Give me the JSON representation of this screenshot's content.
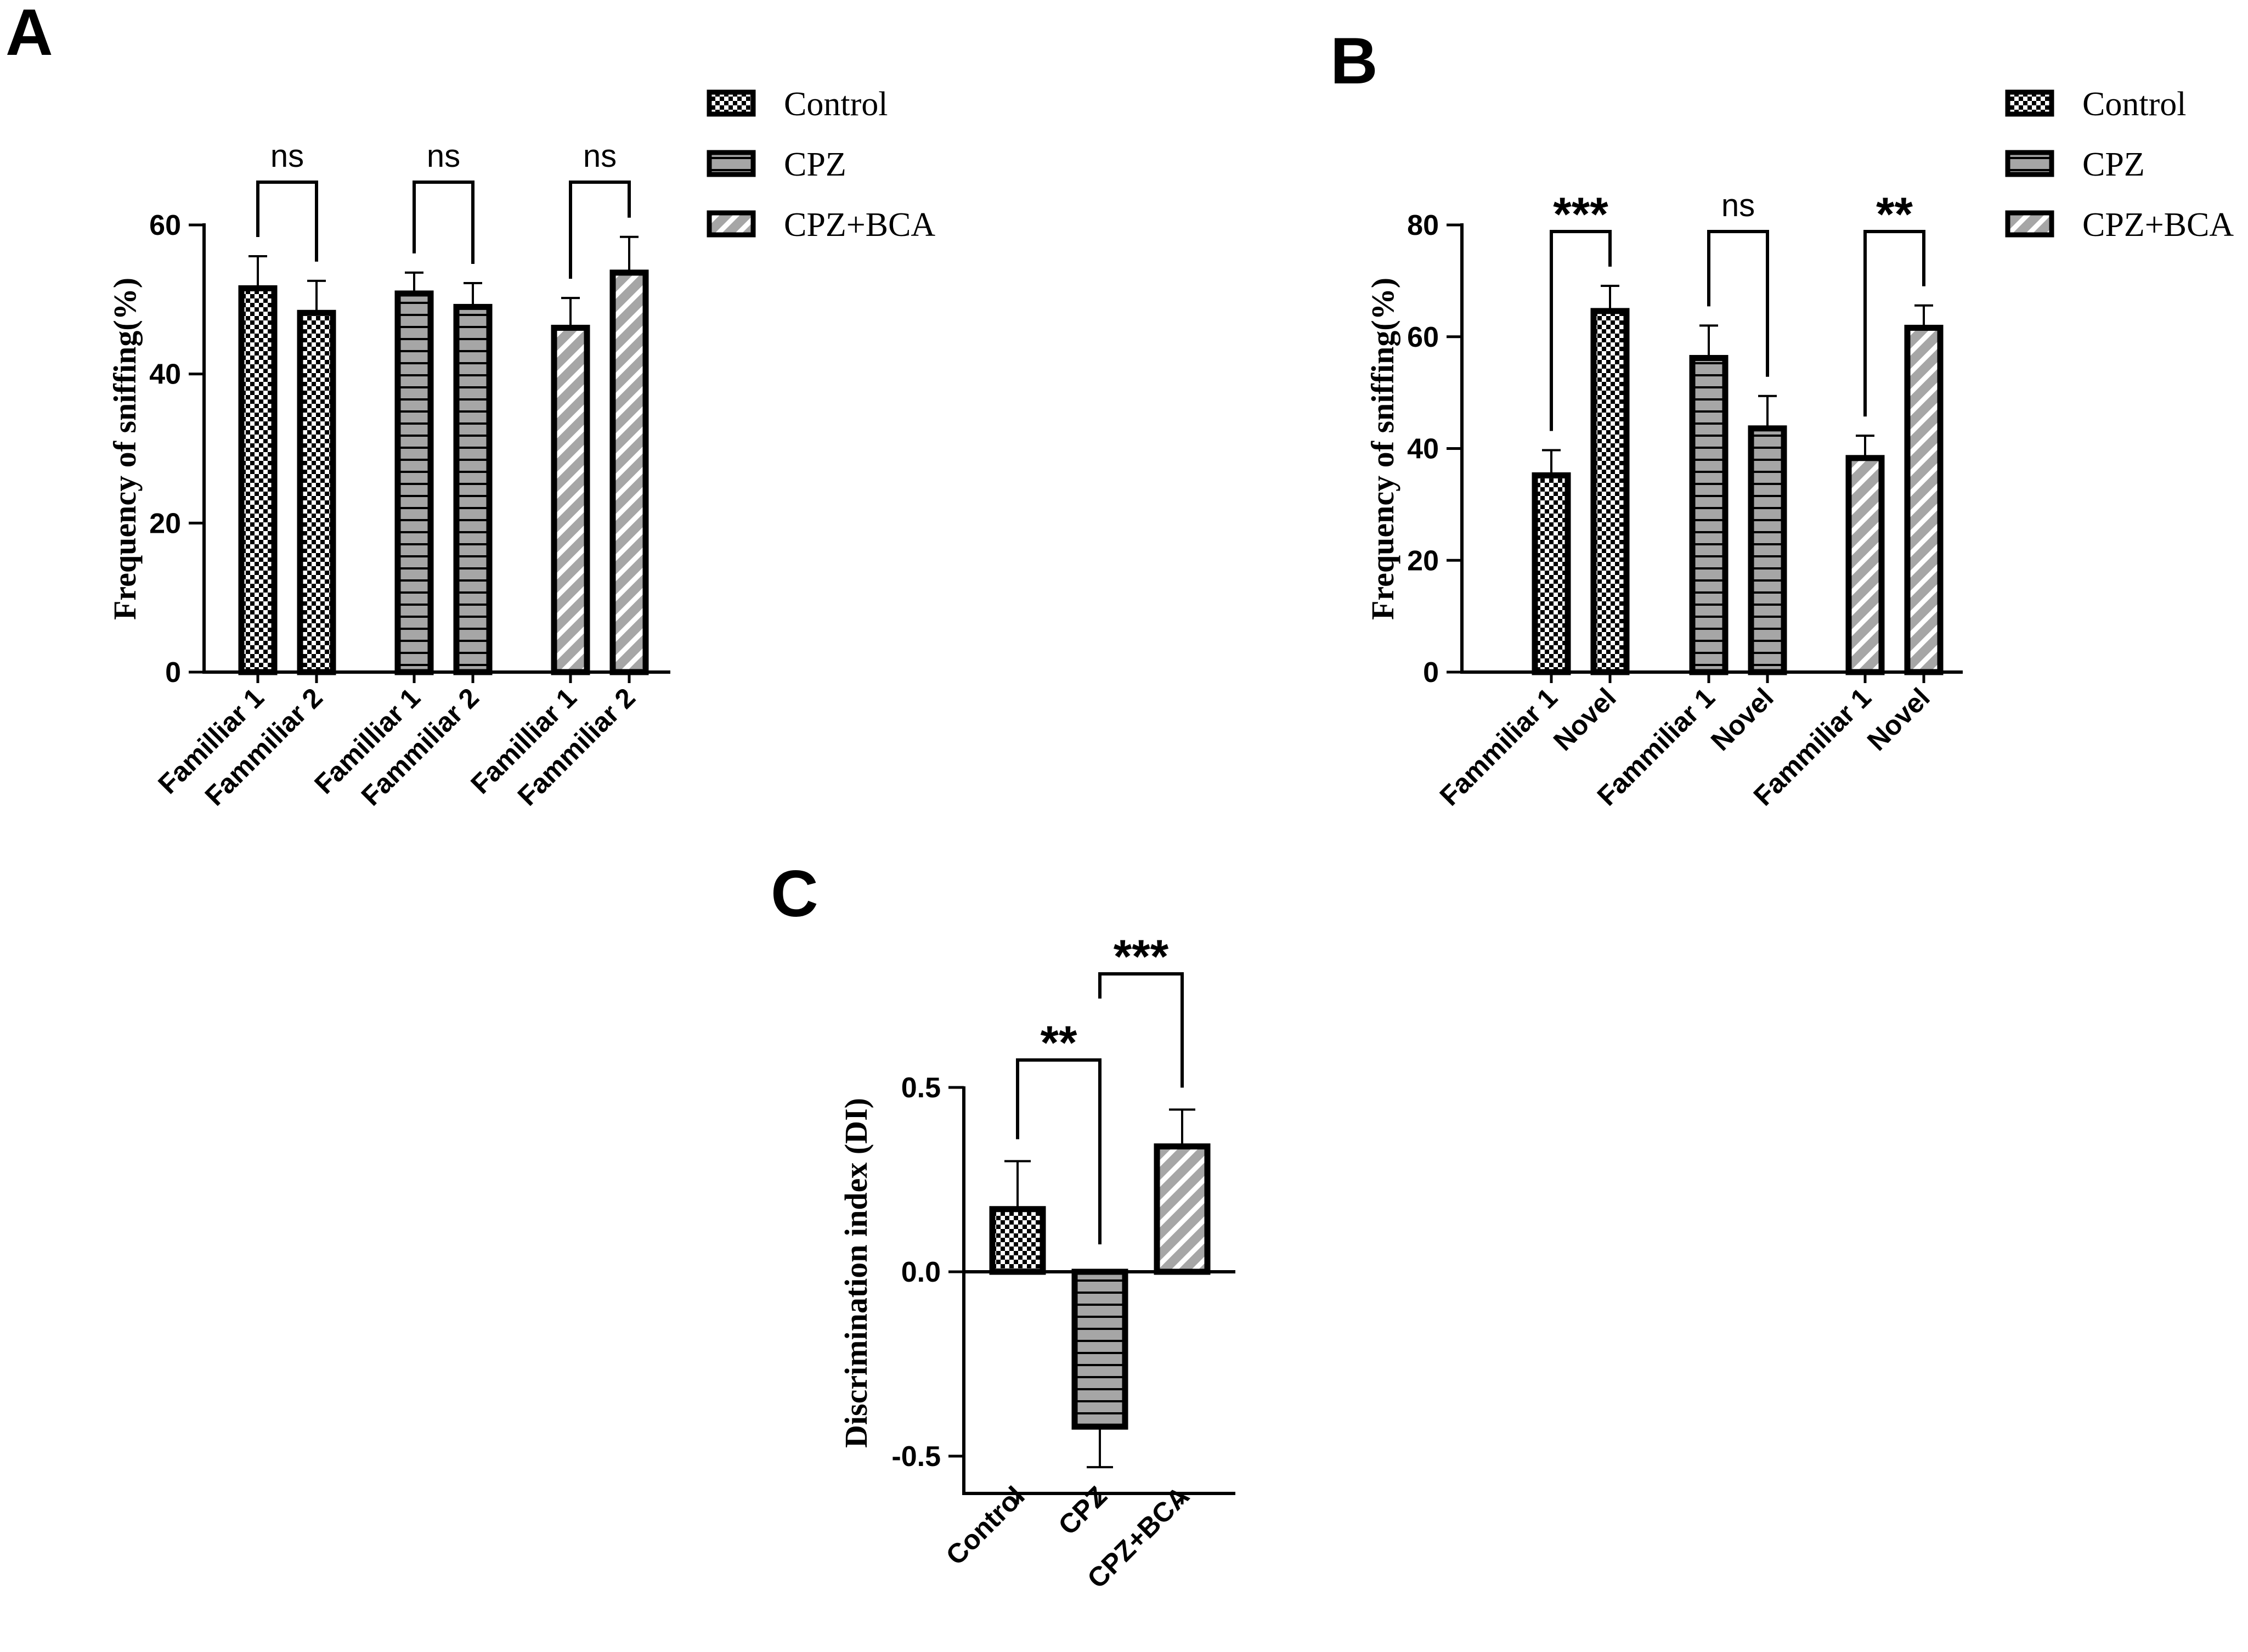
{
  "colors": {
    "ink": "#000000",
    "bar_fill": "#a6a6a6",
    "background": "#ffffff"
  },
  "legend_items": [
    {
      "label": "Control",
      "pattern": "checker"
    },
    {
      "label": "CPZ",
      "pattern": "hstripe"
    },
    {
      "label": "CPZ+BCA",
      "pattern": "diag"
    }
  ],
  "chart_data": [
    {
      "panel": "A",
      "type": "bar",
      "ylabel": "Frequency of sniffing(%)",
      "ylim": [
        0,
        60
      ],
      "yticks": [
        0,
        20,
        40,
        60
      ],
      "legend_position": "top-right",
      "groups": [
        "Control",
        "CPZ",
        "CPZ+BCA"
      ],
      "categories": [
        "Familliar 1",
        "Fammiliar 2",
        "Familliar 1",
        "Fammiliar 2",
        "Familliar 1",
        "Fammiliar 2"
      ],
      "values": [
        51.5,
        48.2,
        50.8,
        49.0,
        46.2,
        53.6
      ],
      "errors": [
        4.3,
        4.3,
        2.8,
        3.2,
        4.0,
        4.8
      ],
      "significance": [
        "ns",
        "ns",
        "ns"
      ]
    },
    {
      "panel": "B",
      "type": "bar",
      "ylabel": "Frequency of sniffing(%)",
      "ylim": [
        0,
        80
      ],
      "yticks": [
        0,
        20,
        40,
        60,
        80
      ],
      "legend_position": "top-right",
      "groups": [
        "Control",
        "CPZ",
        "CPZ+BCA"
      ],
      "categories": [
        "Fammiliar 1",
        "Novel",
        "Fammiliar 1",
        "Novel",
        "Fammiliar 1",
        "Novel"
      ],
      "values": [
        35.2,
        64.6,
        56.2,
        43.6,
        38.3,
        61.6
      ],
      "errors": [
        4.5,
        4.5,
        5.8,
        5.8,
        4.0,
        4.0
      ],
      "significance": [
        "***",
        "ns",
        "**"
      ]
    },
    {
      "panel": "C",
      "type": "bar",
      "ylabel": "Discrimination index (DI)",
      "ylim": [
        -0.6,
        0.5
      ],
      "yticks": [
        -0.5,
        0.0,
        0.5
      ],
      "ytick_labels": [
        "-0.5",
        "0.0",
        "0.5"
      ],
      "categories": [
        "Control",
        "CPZ",
        "CPZ+BCA"
      ],
      "values": [
        0.17,
        -0.42,
        0.34
      ],
      "errors": [
        0.13,
        0.11,
        0.1
      ],
      "significance": [
        {
          "between": [
            "Control",
            "CPZ"
          ],
          "label": "**"
        },
        {
          "between": [
            "CPZ",
            "CPZ+BCA"
          ],
          "label": "***"
        }
      ]
    }
  ]
}
